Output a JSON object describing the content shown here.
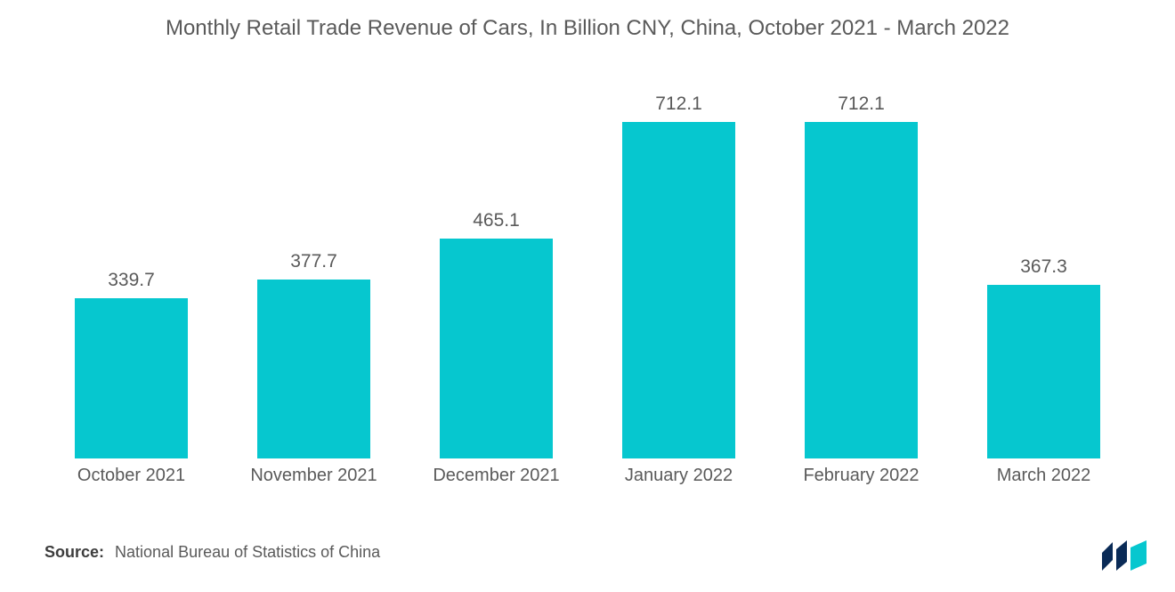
{
  "chart": {
    "type": "bar",
    "title": "Monthly Retail Trade Revenue of Cars, In Billion CNY, China, October 2021 - March 2022",
    "title_color": "#5a5a5a",
    "title_fontsize": 24,
    "background_color": "#ffffff",
    "bar_color": "#06c7cf",
    "bar_width_pct": 62,
    "value_label_color": "#5a5a5a",
    "value_label_fontsize": 21,
    "x_label_color": "#5a5a5a",
    "x_label_fontsize": 20,
    "y_max": 800,
    "categories": [
      "October 2021",
      "November 2021",
      "December 2021",
      "January 2022",
      "February 2022",
      "March 2022"
    ],
    "values": [
      339.7,
      377.7,
      465.1,
      712.1,
      712.1,
      367.3
    ],
    "value_labels": [
      "339.7",
      "377.7",
      "465.1",
      "712.1",
      "712.1",
      "367.3"
    ]
  },
  "source": {
    "label": "Source:",
    "text": "National Bureau of Statistics of China",
    "label_color": "#3d3d3d",
    "text_color": "#5a5a5a",
    "fontsize": 18
  },
  "logo": {
    "color_left": "#0a2b57",
    "color_right": "#06c7cf"
  }
}
